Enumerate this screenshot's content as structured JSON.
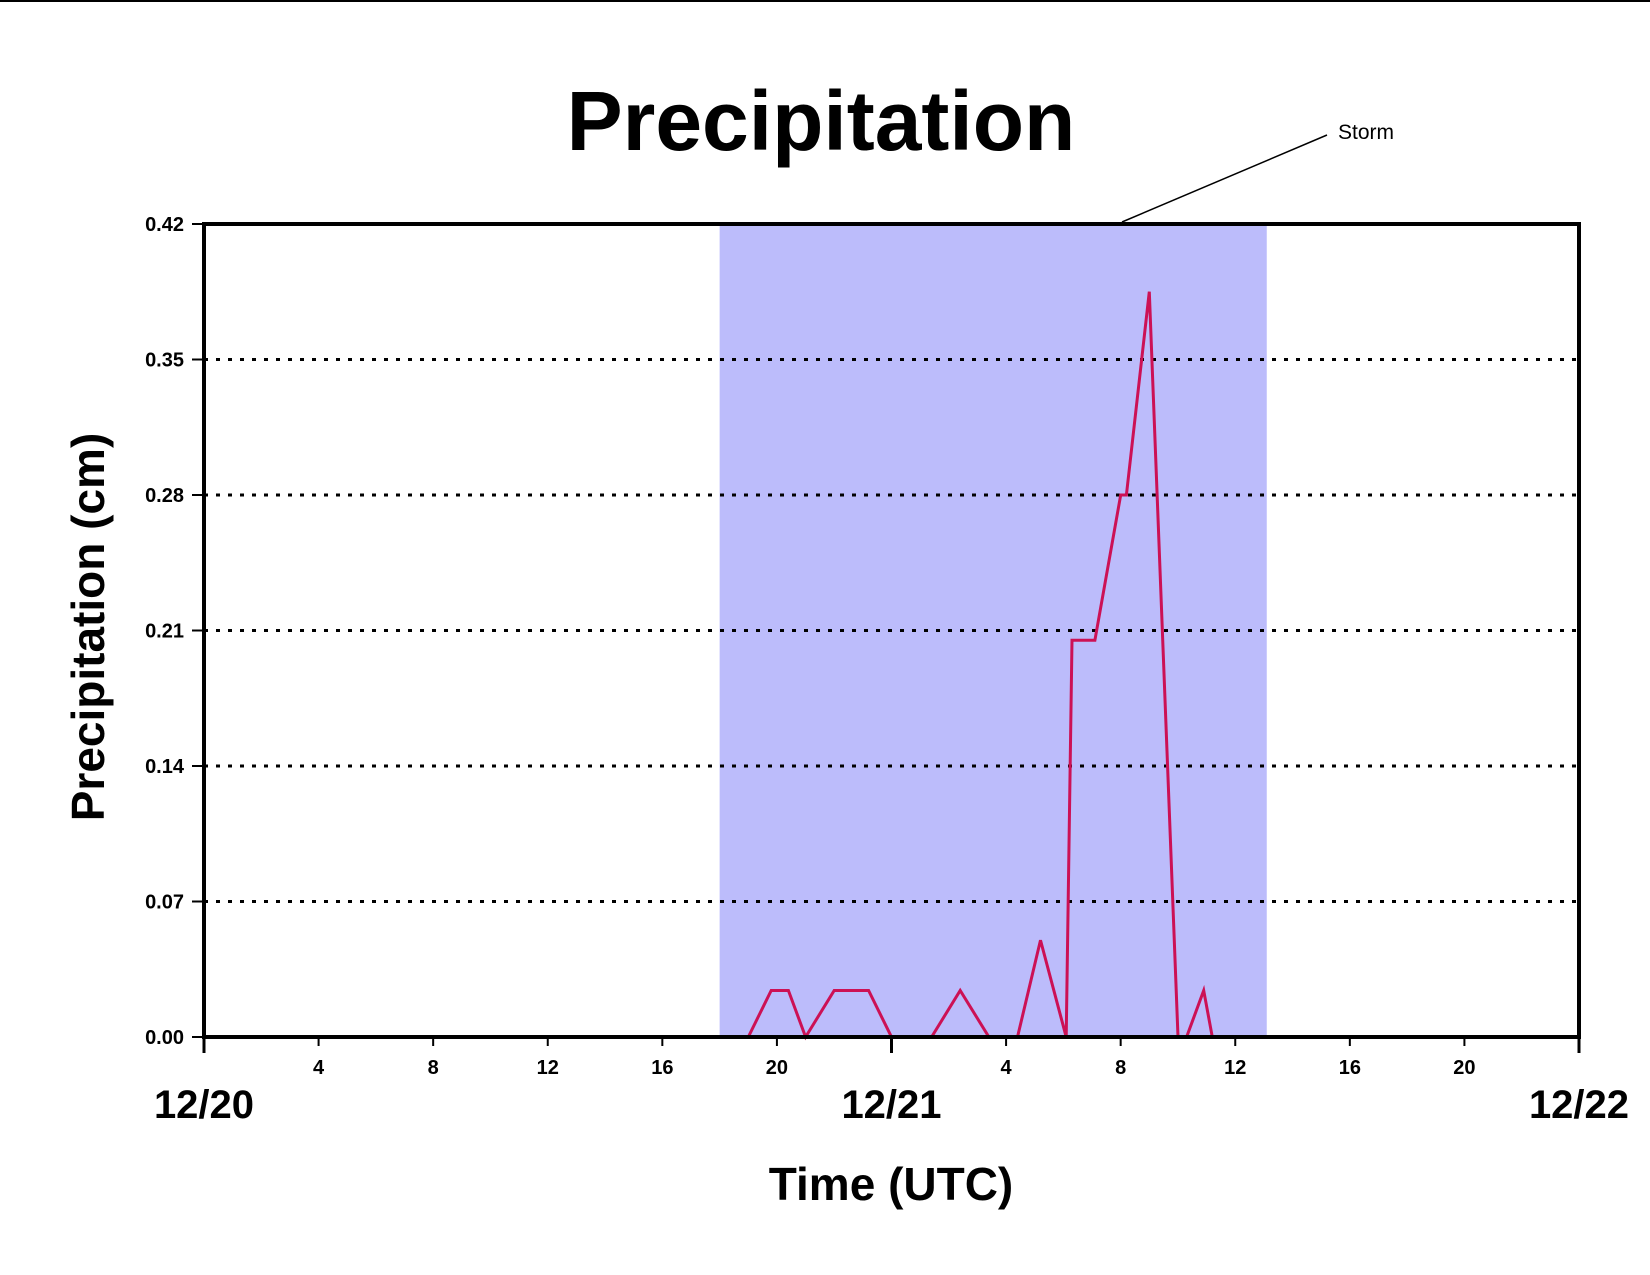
{
  "chart_data": {
    "type": "line",
    "title": "Precipitation",
    "xlabel": "Time (UTC)",
    "ylabel": "Precipitation (cm)",
    "xlim": [
      0,
      48
    ],
    "ylim": [
      0,
      0.42
    ],
    "yticks": [
      "0.00",
      "0.07",
      "0.14",
      "0.21",
      "0.28",
      "0.35",
      "0.42"
    ],
    "xticks": [
      {
        "hour": 4,
        "label": "4"
      },
      {
        "hour": 8,
        "label": "8"
      },
      {
        "hour": 12,
        "label": "12"
      },
      {
        "hour": 16,
        "label": "16"
      },
      {
        "hour": 20,
        "label": "20"
      },
      {
        "hour": 28,
        "label": "4"
      },
      {
        "hour": 32,
        "label": "8"
      },
      {
        "hour": 36,
        "label": "12"
      },
      {
        "hour": 40,
        "label": "16"
      },
      {
        "hour": 44,
        "label": "20"
      }
    ],
    "day_labels": [
      {
        "hour": 0,
        "label": "12/20"
      },
      {
        "hour": 24,
        "label": "12/21"
      },
      {
        "hour": 48,
        "label": "12/22"
      }
    ],
    "grid": "dotted horizontal",
    "highlight_band": {
      "x": [
        18,
        37.1
      ],
      "label": "Storm",
      "color": "#bcbcfb"
    },
    "series": [
      {
        "color": "#cc1155",
        "x": [
          0,
          19,
          19.8,
          20.4,
          21,
          22,
          23.2,
          24,
          25.4,
          26.4,
          27.4,
          28.4,
          29.2,
          30.1,
          30.3,
          31.1,
          32,
          32.2,
          33,
          34,
          34.3,
          34.9,
          35.2,
          48
        ],
        "y": [
          0,
          0,
          0.024,
          0.024,
          0,
          0.024,
          0.024,
          0,
          0,
          0.024,
          0,
          0,
          0.05,
          0,
          0.205,
          0.205,
          0.28,
          0.28,
          0.385,
          0,
          0,
          0.024,
          0,
          0
        ]
      }
    ]
  }
}
